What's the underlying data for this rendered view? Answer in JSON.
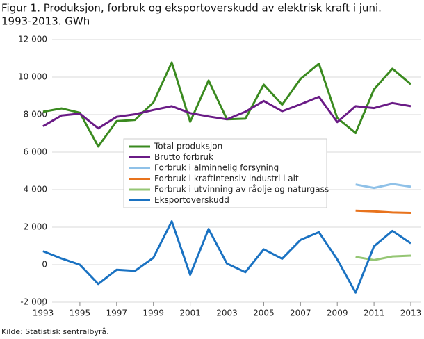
{
  "chart_data": {
    "type": "line",
    "title": "Figur 1. Produksjon, forbruk og eksportoverskudd av elektrisk kraft i juni.",
    "subtitle": "1993-2013. GWh",
    "source": "Kilde: Statistisk sentralbyrå.",
    "x": [
      1993,
      1994,
      1995,
      1996,
      1997,
      1998,
      1999,
      2000,
      2001,
      2002,
      2003,
      2004,
      2005,
      2006,
      2007,
      2008,
      2009,
      2010,
      2011,
      2012,
      2013
    ],
    "xlim": [
      1993,
      2013
    ],
    "xticks": [
      1993,
      1995,
      1997,
      1999,
      2001,
      2003,
      2005,
      2007,
      2009,
      2011,
      2013
    ],
    "ylim": [
      -2000,
      12000
    ],
    "yticks": [
      {
        "value": -2000,
        "label": "-2 000"
      },
      0,
      {
        "value": 2000,
        "label": "2 000"
      },
      {
        "value": 4000,
        "label": "4 000"
      },
      {
        "value": 6000,
        "label": "6 000"
      },
      {
        "value": 8000,
        "label": "8 000"
      },
      {
        "value": 10000,
        "label": "10 000"
      },
      {
        "value": 12000,
        "label": "12 000"
      }
    ],
    "grid": true,
    "legend_position": "center",
    "series": [
      {
        "name": "Total produksjon",
        "color": "#3a8a1f",
        "values": [
          8150,
          8330,
          8100,
          6300,
          7650,
          7720,
          8650,
          10780,
          7620,
          9820,
          7750,
          7780,
          9600,
          8530,
          9900,
          10720,
          7820,
          7020,
          9350,
          10450,
          9620
        ]
      },
      {
        "name": "Brutto forbruk",
        "color": "#6a1b86",
        "values": [
          7380,
          7950,
          8050,
          7270,
          7880,
          8020,
          8250,
          8450,
          8080,
          7900,
          7750,
          8150,
          8730,
          8180,
          8550,
          8950,
          7600,
          8450,
          8350,
          8620,
          8450
        ]
      },
      {
        "name": "Forbruk i alminnelig forsyning",
        "color": "#8fc1e8",
        "values": [
          null,
          null,
          null,
          null,
          null,
          null,
          null,
          null,
          null,
          null,
          null,
          null,
          null,
          null,
          null,
          null,
          null,
          4270,
          4090,
          4300,
          4150
        ]
      },
      {
        "name": "Forbruk i kraftintensiv industri i alt",
        "color": "#e8731d",
        "values": [
          null,
          null,
          null,
          null,
          null,
          null,
          null,
          null,
          null,
          null,
          null,
          null,
          null,
          null,
          null,
          null,
          null,
          2880,
          2840,
          2780,
          2760
        ]
      },
      {
        "name": "Forbruk i utvinning av råolje og naturgass",
        "color": "#95c674",
        "values": [
          null,
          null,
          null,
          null,
          null,
          null,
          null,
          null,
          null,
          null,
          null,
          null,
          null,
          null,
          null,
          null,
          null,
          420,
          250,
          440,
          480
        ]
      },
      {
        "name": "Eksportoverskudd",
        "color": "#1a72c2",
        "values": [
          720,
          330,
          0,
          -1030,
          -270,
          -330,
          370,
          2310,
          -540,
          1900,
          60,
          -400,
          820,
          320,
          1320,
          1730,
          280,
          -1490,
          980,
          1800,
          1140
        ]
      }
    ]
  }
}
